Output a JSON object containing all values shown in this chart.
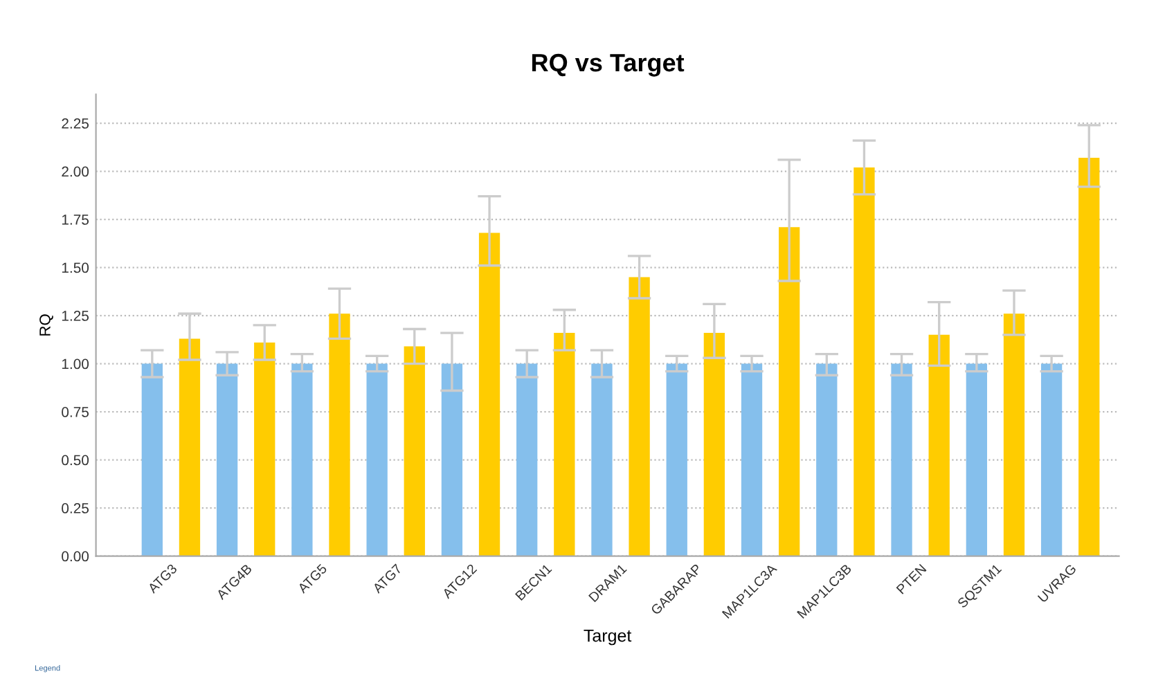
{
  "chart_data": {
    "type": "bar",
    "title": "RQ vs Target",
    "xlabel": "Target",
    "ylabel": "RQ",
    "categories": [
      "ATG3",
      "ATG4B",
      "ATG5",
      "ATG7",
      "ATG12",
      "BECN1",
      "DRAM1",
      "GABARAP",
      "MAP1LC3A",
      "MAP1LC3B",
      "PTEN",
      "SQSTM1",
      "UVRAG"
    ],
    "series": [
      {
        "color": "#85bfec",
        "values": [
          1.0,
          1.0,
          1.0,
          1.0,
          1.0,
          1.0,
          1.0,
          1.0,
          1.0,
          1.0,
          1.0,
          1.0,
          1.0
        ],
        "errors": [
          [
            0.93,
            1.07
          ],
          [
            0.94,
            1.06
          ],
          [
            0.96,
            1.05
          ],
          [
            0.96,
            1.04
          ],
          [
            0.86,
            1.16
          ],
          [
            0.93,
            1.07
          ],
          [
            0.93,
            1.07
          ],
          [
            0.96,
            1.04
          ],
          [
            0.96,
            1.04
          ],
          [
            0.94,
            1.05
          ],
          [
            0.94,
            1.05
          ],
          [
            0.96,
            1.05
          ],
          [
            0.96,
            1.04
          ]
        ]
      },
      {
        "color": "#ffcc00",
        "values": [
          1.13,
          1.11,
          1.26,
          1.09,
          1.68,
          1.16,
          1.45,
          1.16,
          1.71,
          2.02,
          1.15,
          1.26,
          2.07
        ],
        "errors": [
          [
            1.02,
            1.26
          ],
          [
            1.02,
            1.2
          ],
          [
            1.13,
            1.39
          ],
          [
            1.0,
            1.18
          ],
          [
            1.51,
            1.87
          ],
          [
            1.07,
            1.28
          ],
          [
            1.34,
            1.56
          ],
          [
            1.03,
            1.31
          ],
          [
            1.43,
            2.06
          ],
          [
            1.88,
            2.16
          ],
          [
            0.99,
            1.32
          ],
          [
            1.15,
            1.38
          ],
          [
            1.92,
            2.24
          ]
        ]
      }
    ],
    "ylim": [
      0,
      2.4
    ],
    "yticks": [
      {
        "value": 0,
        "label": "0.00"
      },
      {
        "value": 0.25,
        "label": "0.25"
      },
      {
        "value": 0.5,
        "label": "0.50"
      },
      {
        "value": 0.75,
        "label": "0.75"
      },
      {
        "value": 1.0,
        "label": "1.00"
      },
      {
        "value": 1.25,
        "label": "1.25"
      },
      {
        "value": 1.5,
        "label": "1.50"
      },
      {
        "value": 1.75,
        "label": "1.75"
      },
      {
        "value": 2.0,
        "label": "2.00"
      },
      {
        "value": 2.25,
        "label": "2.25"
      }
    ],
    "grid": "y",
    "legend": false,
    "annotations": [
      "Legend"
    ]
  }
}
